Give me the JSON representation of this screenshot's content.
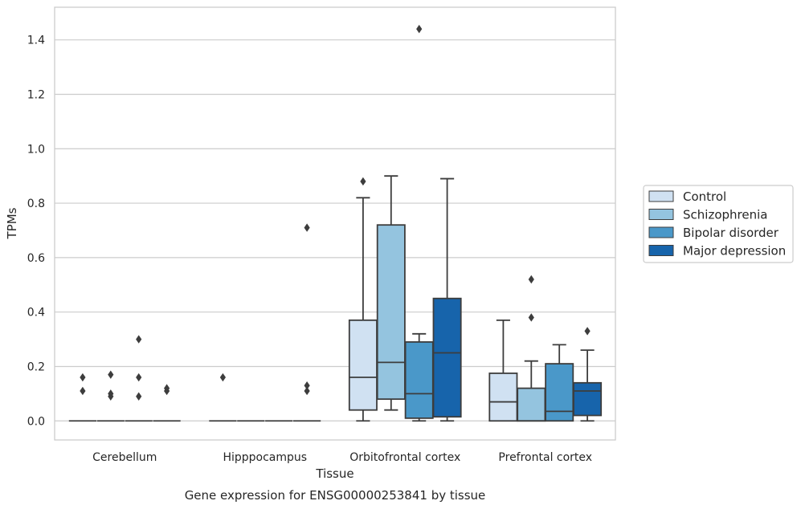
{
  "chart_data": {
    "type": "box",
    "title": "",
    "caption": "Gene expression for ENSG00000253841 by tissue",
    "xlabel": "Tissue",
    "ylabel": "TPMs",
    "ylim": [
      -0.07,
      1.52
    ],
    "yticks": [
      "0.0",
      "0.2",
      "0.4",
      "0.6",
      "0.8",
      "1.0",
      "1.2",
      "1.4"
    ],
    "grid": "horizontal",
    "legend_position": "right",
    "categories": [
      "Cerebellum",
      "Hipppocampus",
      "Orbitofrontal cortex",
      "Prefrontal cortex"
    ],
    "series": [
      {
        "name": "Control",
        "color": "#d0e1f2",
        "boxes": [
          {
            "q1": 0,
            "median": 0,
            "q3": 0,
            "whislo": 0,
            "whishi": 0,
            "fliers": [
              0.16,
              0.11
            ]
          },
          {
            "q1": 0,
            "median": 0,
            "q3": 0,
            "whislo": 0,
            "whishi": 0,
            "fliers": [
              0.16
            ]
          },
          {
            "q1": 0.04,
            "median": 0.16,
            "q3": 0.37,
            "whislo": 0,
            "whishi": 0.82,
            "fliers": [
              0.88
            ]
          },
          {
            "q1": 0,
            "median": 0.07,
            "q3": 0.175,
            "whislo": 0,
            "whishi": 0.37,
            "fliers": []
          }
        ]
      },
      {
        "name": "Schizophrenia",
        "color": "#94c4df",
        "boxes": [
          {
            "q1": 0,
            "median": 0,
            "q3": 0,
            "whislo": 0,
            "whishi": 0,
            "fliers": [
              0.17,
              0.1,
              0.09
            ]
          },
          {
            "q1": 0,
            "median": 0,
            "q3": 0,
            "whislo": 0,
            "whishi": 0,
            "fliers": []
          },
          {
            "q1": 0.08,
            "median": 0.215,
            "q3": 0.72,
            "whislo": 0.04,
            "whishi": 0.9,
            "fliers": []
          },
          {
            "q1": 0,
            "median": 0,
            "q3": 0.12,
            "whislo": 0,
            "whishi": 0.22,
            "fliers": [
              0.52,
              0.38
            ]
          }
        ]
      },
      {
        "name": "Bipolar disorder",
        "color": "#4a98c9",
        "boxes": [
          {
            "q1": 0,
            "median": 0,
            "q3": 0,
            "whislo": 0,
            "whishi": 0,
            "fliers": [
              0.3,
              0.16,
              0.09
            ]
          },
          {
            "q1": 0,
            "median": 0,
            "q3": 0,
            "whislo": 0,
            "whishi": 0,
            "fliers": []
          },
          {
            "q1": 0.01,
            "median": 0.1,
            "q3": 0.29,
            "whislo": 0,
            "whishi": 0.32,
            "fliers": [
              1.44
            ]
          },
          {
            "q1": 0,
            "median": 0.035,
            "q3": 0.21,
            "whislo": 0,
            "whishi": 0.28,
            "fliers": []
          }
        ]
      },
      {
        "name": "Major depression",
        "color": "#1764ab",
        "boxes": [
          {
            "q1": 0,
            "median": 0,
            "q3": 0,
            "whislo": 0,
            "whishi": 0,
            "fliers": [
              0.12,
              0.11
            ]
          },
          {
            "q1": 0,
            "median": 0,
            "q3": 0,
            "whislo": 0,
            "whishi": 0,
            "fliers": [
              0.71,
              0.13,
              0.11
            ]
          },
          {
            "q1": 0.015,
            "median": 0.25,
            "q3": 0.45,
            "whislo": 0,
            "whishi": 0.89,
            "fliers": []
          },
          {
            "q1": 0.02,
            "median": 0.11,
            "q3": 0.14,
            "whislo": 0,
            "whishi": 0.26,
            "fliers": [
              0.33
            ]
          }
        ]
      }
    ]
  }
}
